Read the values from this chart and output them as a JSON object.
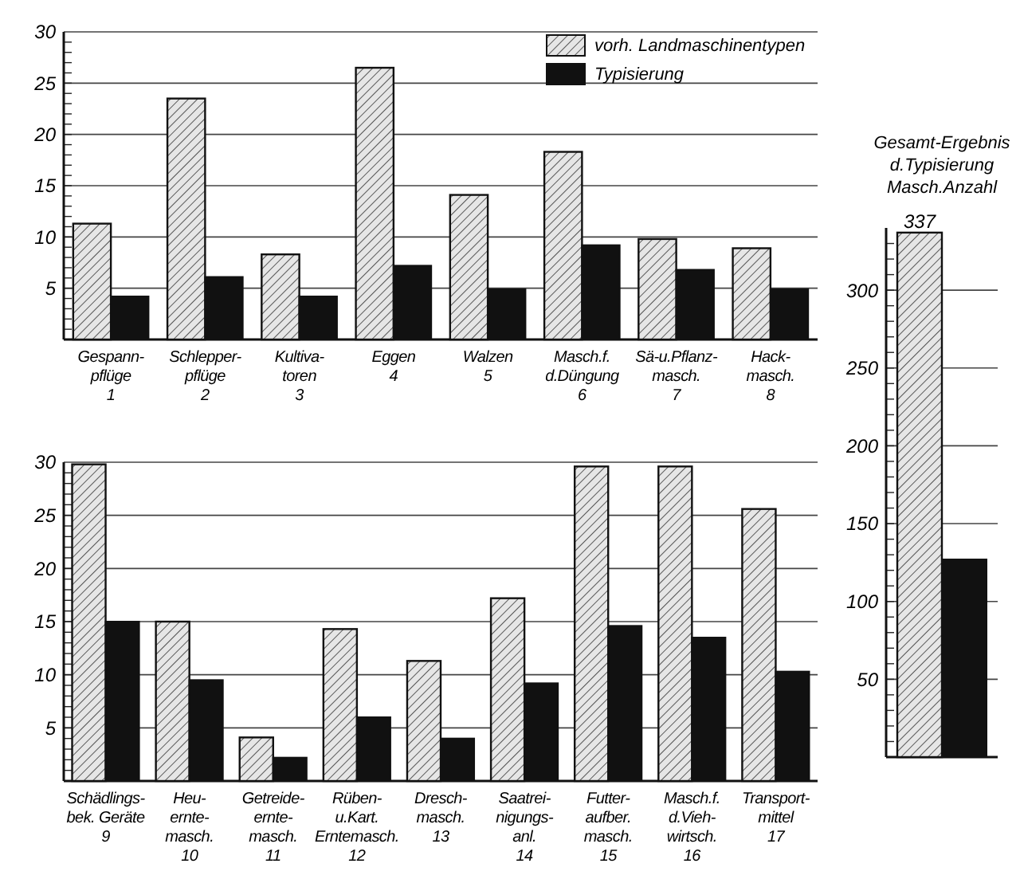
{
  "chart_data": [
    {
      "type": "bar",
      "categories": [
        "Gespann-\npflüge\n1",
        "Schlepper-\npflüge\n2",
        "Kultiva-\ntoren\n3",
        "Eggen\n4",
        "Walzen\n5",
        "Masch.f.\nd.Düngung\n6",
        "Sä-u.Pflanz-\nmasch.\n7",
        "Hack-\nmasch.\n8"
      ],
      "series": [
        {
          "name": "vorh. Landmaschinentypen",
          "color": "#e6e6e6",
          "values": [
            11.3,
            23.5,
            8.3,
            26.5,
            14.1,
            18.3,
            9.8,
            8.9
          ]
        },
        {
          "name": "Typisierung",
          "color": "#111111",
          "values": [
            4.2,
            6.1,
            4.2,
            7.2,
            4.9,
            9.2,
            6.8,
            4.9
          ]
        }
      ],
      "ylim": [
        0,
        30
      ],
      "yticks": [
        5,
        10,
        15,
        20,
        25,
        30
      ],
      "grid": "y",
      "legend": "top right"
    },
    {
      "type": "bar",
      "categories": [
        "Schädlings-\nbek. Geräte\n9",
        "Heu-\nernte-\nmasch.\n10",
        "Getreide-\nernte-\nmasch.\n11",
        "Rüben-\nu.Kart.\nErntemasch.\n12",
        "Dresch-\nmasch.\n13",
        "Saatrei-\nnigungs-\nanl.\n14",
        "Futter-\naufber.\nmasch.\n15",
        "Masch.f.\nd.Vieh-\nwirtsch.\n16",
        "Transport-\nmittel\n17"
      ],
      "series": [
        {
          "color": "#e6e6e6",
          "values": [
            29.8,
            15,
            4.1,
            14.3,
            11.3,
            17.2,
            29.6,
            29.6,
            25.6
          ]
        },
        {
          "color": "#111111",
          "values": [
            15,
            9.5,
            2.2,
            6,
            4,
            9.2,
            14.6,
            13.5,
            10.3
          ]
        }
      ],
      "ylim": [
        0,
        30
      ],
      "yticks": [
        5,
        10,
        15,
        20,
        25,
        30
      ],
      "grid": "y"
    },
    {
      "type": "bar",
      "title": "Gesamt-Ergebnis\nd.Typisierung\nMasch.Anzahl",
      "categories": [
        null
      ],
      "series": [
        {
          "color": "#e6e6e6",
          "values": [
            337
          ],
          "value_labels": [
            "337"
          ]
        },
        {
          "color": "#111111",
          "values": [
            127
          ]
        }
      ],
      "ylim": [
        0,
        340
      ],
      "yticks": [
        50,
        100,
        150,
        200,
        250,
        300
      ],
      "grid": "y"
    }
  ]
}
